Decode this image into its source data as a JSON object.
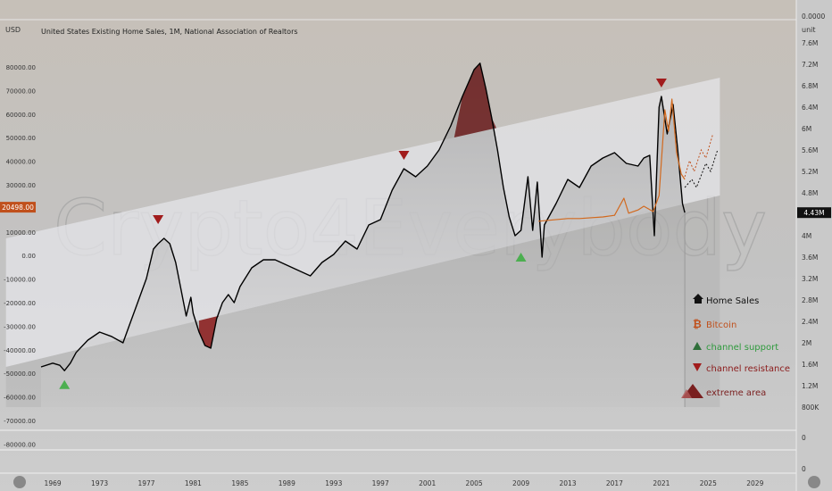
{
  "chart_data": {
    "type": "line",
    "title": "United States Existing Home Sales, 1M, National Association of Realtors",
    "left_unit": "USD",
    "right_unit": "unit",
    "watermark": "Crypto4Everybody",
    "left_ticks": [
      "80000.00",
      "70000.00",
      "60000.00",
      "50000.00",
      "40000.00",
      "30000.00",
      "20000.00",
      "10000.00",
      "0.00",
      "-10000.00",
      "-20000.00",
      "-30000.00",
      "-40000.00",
      "-50000.00",
      "-60000.00",
      "-70000.00",
      "-80000.00"
    ],
    "left_current_label": "20498.00",
    "left_current_value": 20498,
    "right_ticks": [
      "0.0000",
      "7.6M",
      "7.2M",
      "6.8M",
      "6.4M",
      "6M",
      "5.6M",
      "5.2M",
      "4.8M",
      "4.4M",
      "4M",
      "3.6M",
      "3.2M",
      "2.8M",
      "2.4M",
      "2M",
      "1.6M",
      "1.2M",
      "800K",
      "0"
    ],
    "right_current_label": "4.43M",
    "right_current_value": 4.43,
    "x_ticks": [
      "1969",
      "1973",
      "1977",
      "1981",
      "1985",
      "1989",
      "1993",
      "1997",
      "2001",
      "2005",
      "2009",
      "2013",
      "2017",
      "2021",
      "2025",
      "2029"
    ],
    "ylim_millions": [
      0.8,
      7.6
    ],
    "series": [
      {
        "name": "Home Sales",
        "color": "#000000",
        "points": [
          [
            1968.0,
            1.55
          ],
          [
            1969.0,
            1.62
          ],
          [
            1969.6,
            1.58
          ],
          [
            1970.0,
            1.48
          ],
          [
            1970.5,
            1.62
          ],
          [
            1971.0,
            1.82
          ],
          [
            1972.0,
            2.05
          ],
          [
            1973.0,
            2.2
          ],
          [
            1974.0,
            2.12
          ],
          [
            1975.0,
            2.0
          ],
          [
            1975.5,
            2.3
          ],
          [
            1976.0,
            2.6
          ],
          [
            1977.0,
            3.2
          ],
          [
            1977.6,
            3.75
          ],
          [
            1978.0,
            3.85
          ],
          [
            1978.5,
            3.95
          ],
          [
            1979.0,
            3.85
          ],
          [
            1979.5,
            3.5
          ],
          [
            1980.0,
            2.95
          ],
          [
            1980.4,
            2.5
          ],
          [
            1980.8,
            2.85
          ],
          [
            1981.0,
            2.55
          ],
          [
            1981.5,
            2.2
          ],
          [
            1982.0,
            1.95
          ],
          [
            1982.5,
            1.9
          ],
          [
            1983.0,
            2.45
          ],
          [
            1983.5,
            2.75
          ],
          [
            1984.0,
            2.9
          ],
          [
            1984.5,
            2.75
          ],
          [
            1985.0,
            3.05
          ],
          [
            1986.0,
            3.4
          ],
          [
            1987.0,
            3.55
          ],
          [
            1988.0,
            3.55
          ],
          [
            1989.0,
            3.45
          ],
          [
            1990.0,
            3.35
          ],
          [
            1991.0,
            3.25
          ],
          [
            1992.0,
            3.5
          ],
          [
            1993.0,
            3.65
          ],
          [
            1994.0,
            3.9
          ],
          [
            1995.0,
            3.75
          ],
          [
            1996.0,
            4.2
          ],
          [
            1997.0,
            4.3
          ],
          [
            1998.0,
            4.85
          ],
          [
            1999.0,
            5.25
          ],
          [
            2000.0,
            5.1
          ],
          [
            2001.0,
            5.3
          ],
          [
            2002.0,
            5.6
          ],
          [
            2003.0,
            6.05
          ],
          [
            2004.0,
            6.6
          ],
          [
            2005.0,
            7.1
          ],
          [
            2005.5,
            7.22
          ],
          [
            2006.0,
            6.75
          ],
          [
            2006.5,
            6.2
          ],
          [
            2007.0,
            5.6
          ],
          [
            2007.5,
            4.9
          ],
          [
            2008.0,
            4.35
          ],
          [
            2008.5,
            4.0
          ],
          [
            2009.0,
            4.1
          ],
          [
            2009.6,
            5.1
          ],
          [
            2010.0,
            4.1
          ],
          [
            2010.4,
            5.0
          ],
          [
            2010.8,
            3.6
          ],
          [
            2011.0,
            4.2
          ],
          [
            2012.0,
            4.6
          ],
          [
            2013.0,
            5.05
          ],
          [
            2014.0,
            4.9
          ],
          [
            2015.0,
            5.3
          ],
          [
            2016.0,
            5.45
          ],
          [
            2017.0,
            5.55
          ],
          [
            2018.0,
            5.35
          ],
          [
            2019.0,
            5.3
          ],
          [
            2019.5,
            5.45
          ],
          [
            2020.0,
            5.5
          ],
          [
            2020.4,
            4.0
          ],
          [
            2020.8,
            6.4
          ],
          [
            2021.0,
            6.6
          ],
          [
            2021.5,
            5.9
          ],
          [
            2022.0,
            6.45
          ],
          [
            2022.4,
            5.6
          ],
          [
            2022.8,
            4.6
          ],
          [
            2023.0,
            4.43
          ]
        ]
      },
      {
        "name": "Bitcoin",
        "color": "#d2691e",
        "points": [
          [
            2010.5,
            4.27
          ],
          [
            2013.0,
            4.32
          ],
          [
            2014.0,
            4.32
          ],
          [
            2016.0,
            4.35
          ],
          [
            2017.0,
            4.38
          ],
          [
            2017.8,
            4.7
          ],
          [
            2018.2,
            4.42
          ],
          [
            2019.0,
            4.48
          ],
          [
            2019.5,
            4.55
          ],
          [
            2020.3,
            4.45
          ],
          [
            2020.8,
            4.75
          ],
          [
            2021.3,
            6.35
          ],
          [
            2021.6,
            5.95
          ],
          [
            2021.9,
            6.55
          ],
          [
            2022.3,
            5.55
          ],
          [
            2022.7,
            5.15
          ],
          [
            2023.0,
            5.05
          ]
        ]
      }
    ],
    "channel": {
      "upper": [
        [
          1965.0,
          3.95
        ],
        [
          2026.0,
          6.95
        ]
      ],
      "lower": [
        [
          1965.0,
          1.55
        ],
        [
          2026.0,
          4.75
        ]
      ]
    },
    "support_markers": [
      [
        1970.0,
        1.22
      ],
      [
        2009.0,
        3.6
      ]
    ],
    "resistance_markers": [
      [
        1978.0,
        4.3
      ],
      [
        1999.0,
        5.5
      ],
      [
        2021.0,
        6.85
      ]
    ],
    "legend": [
      {
        "label": "Home Sales",
        "icon": "home-icon",
        "color": "#111111"
      },
      {
        "label": "Bitcoin",
        "icon": "bitcoin-icon",
        "color": "#c0501c"
      },
      {
        "label": "channel support",
        "icon": "triangle-up-icon",
        "color": "#2e9a3c"
      },
      {
        "label": "channel resistance",
        "icon": "triangle-down-icon",
        "color": "#8b1a1a"
      },
      {
        "label": "extreme area",
        "icon": "extreme-icon",
        "color": "#7a1f1f"
      }
    ],
    "grid": false
  }
}
